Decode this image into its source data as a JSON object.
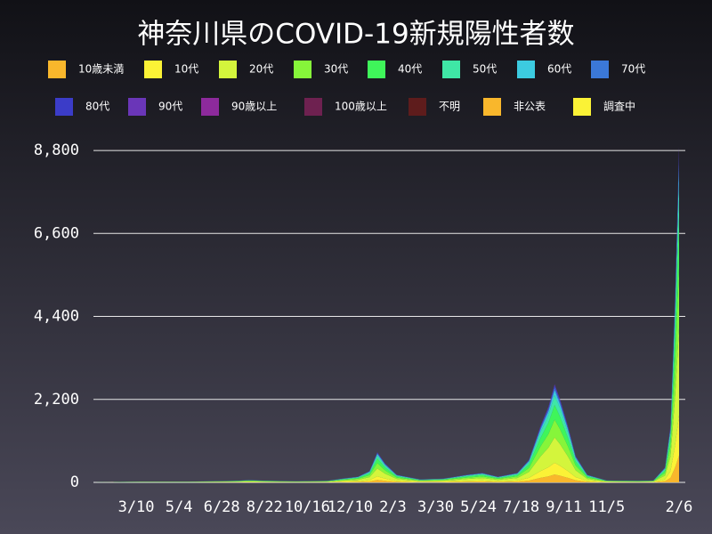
{
  "chart_data": {
    "type": "stacked-area",
    "title": "神奈川県のCOVID-19新規陽性者数",
    "x": [
      0,
      60,
      120,
      180,
      200,
      230,
      260,
      300,
      320,
      340,
      355,
      365,
      375,
      390,
      420,
      450,
      480,
      500,
      520,
      545,
      560,
      575,
      585,
      593,
      600,
      610,
      620,
      635,
      660,
      700,
      720,
      735,
      742,
      748,
      753
    ],
    "xlim": [
      0,
      761
    ],
    "xticks": [
      {
        "value": 55,
        "label": "3/10"
      },
      {
        "value": 110,
        "label": "5/4"
      },
      {
        "value": 165,
        "label": "6/28"
      },
      {
        "value": 220,
        "label": "8/22"
      },
      {
        "value": 275,
        "label": "10/16"
      },
      {
        "value": 330,
        "label": "12/10"
      },
      {
        "value": 385,
        "label": "2/3"
      },
      {
        "value": 440,
        "label": "3/30"
      },
      {
        "value": 495,
        "label": "5/24"
      },
      {
        "value": 550,
        "label": "7/18"
      },
      {
        "value": 605,
        "label": "9/11"
      },
      {
        "value": 660,
        "label": "11/5"
      },
      {
        "value": 753,
        "label": "2/6"
      }
    ],
    "ylim": [
      0,
      9250
    ],
    "yticks": [
      0,
      {
        "value": 2200,
        "label": "2,200"
      },
      {
        "value": 4400,
        "label": "4,400"
      },
      {
        "value": 6600,
        "label": "6,600"
      },
      {
        "value": 8800,
        "label": "8,800"
      }
    ],
    "grid": true,
    "series": [
      {
        "name": "10歳未満",
        "color": "#f9b72c",
        "values": [
          0,
          2,
          2,
          3,
          5,
          3,
          2,
          3,
          8,
          12,
          24,
          64,
          40,
          16,
          6,
          8,
          16,
          20,
          12,
          20,
          48,
          120,
          160,
          208,
          176,
          120,
          56,
          16,
          4,
          3,
          4,
          32,
          120,
          400,
          712
        ]
      },
      {
        "name": "10代",
        "color": "#fbf236",
        "values": [
          0,
          2,
          2,
          5,
          7,
          5,
          4,
          5,
          12,
          18,
          36,
          96,
          60,
          24,
          10,
          12,
          24,
          30,
          18,
          30,
          72,
          180,
          240,
          312,
          264,
          180,
          84,
          24,
          6,
          5,
          6,
          48,
          180,
          600,
          1068
        ]
      },
      {
        "name": "20代",
        "color": "#d4f53c",
        "values": [
          0,
          5,
          5,
          10,
          16,
          10,
          8,
          10,
          26,
          39,
          78,
          208,
          130,
          52,
          21,
          26,
          52,
          65,
          39,
          65,
          156,
          390,
          520,
          676,
          572,
          390,
          182,
          52,
          13,
          10,
          13,
          104,
          390,
          1300,
          2314
        ]
      },
      {
        "name": "30代",
        "color": "#86f53a",
        "values": [
          0,
          4,
          4,
          7,
          11,
          7,
          5,
          7,
          18,
          27,
          54,
          144,
          90,
          36,
          14,
          18,
          36,
          45,
          27,
          45,
          108,
          270,
          360,
          468,
          396,
          270,
          126,
          36,
          9,
          7,
          9,
          72,
          270,
          900,
          1602
        ]
      },
      {
        "name": "40代",
        "color": "#3ff55a",
        "values": [
          0,
          3,
          3,
          6,
          9,
          6,
          4,
          6,
          15,
          22,
          45,
          120,
          75,
          30,
          12,
          15,
          30,
          38,
          22,
          38,
          90,
          225,
          300,
          390,
          330,
          225,
          105,
          30,
          8,
          6,
          8,
          60,
          225,
          750,
          1335
        ]
      },
      {
        "name": "50代",
        "color": "#3fe7a6",
        "values": [
          0,
          2,
          2,
          4,
          6,
          4,
          3,
          4,
          10,
          15,
          30,
          80,
          50,
          20,
          8,
          10,
          20,
          25,
          15,
          25,
          60,
          150,
          200,
          260,
          220,
          150,
          70,
          20,
          5,
          4,
          5,
          40,
          150,
          500,
          890
        ]
      },
      {
        "name": "60代",
        "color": "#3ccbe0",
        "values": [
          0,
          1,
          1,
          2,
          3,
          2,
          2,
          2,
          5,
          8,
          15,
          40,
          25,
          10,
          4,
          5,
          10,
          12,
          8,
          12,
          30,
          75,
          100,
          130,
          110,
          75,
          35,
          10,
          2,
          2,
          2,
          20,
          75,
          250,
          445
        ]
      },
      {
        "name": "70代",
        "color": "#3b78d8",
        "values": [
          0,
          1,
          1,
          1,
          2,
          1,
          1,
          1,
          3,
          4,
          9,
          24,
          15,
          6,
          2,
          3,
          6,
          8,
          4,
          8,
          18,
          45,
          60,
          78,
          66,
          45,
          21,
          6,
          2,
          1,
          2,
          12,
          45,
          150,
          267
        ]
      },
      {
        "name": "80代",
        "color": "#3b3cc8",
        "values": [
          0,
          0,
          0,
          1,
          1,
          1,
          1,
          1,
          2,
          3,
          6,
          16,
          10,
          4,
          2,
          2,
          4,
          5,
          3,
          5,
          12,
          30,
          40,
          52,
          44,
          30,
          14,
          4,
          1,
          1,
          1,
          8,
          30,
          100,
          178
        ]
      },
      {
        "name": "90代",
        "color": "#6a36b8",
        "values": [
          0,
          0,
          0,
          0,
          0,
          0,
          0,
          0,
          1,
          2,
          3,
          8,
          5,
          2,
          1,
          1,
          2,
          2,
          2,
          2,
          6,
          15,
          20,
          26,
          22,
          15,
          7,
          2,
          1,
          0,
          0,
          4,
          15,
          50,
          89
        ]
      },
      {
        "name": "90歳以上",
        "color": "#8d2a9c",
        "values": [
          0,
          0,
          0,
          0,
          0,
          0,
          0,
          0,
          0,
          0,
          0,
          0,
          0,
          0,
          0,
          0,
          0,
          0,
          0,
          0,
          0,
          0,
          0,
          0,
          0,
          0,
          0,
          0,
          0,
          0,
          0,
          0,
          0,
          0,
          0
        ]
      },
      {
        "name": "100歳以上",
        "color": "#6e2150",
        "values": [
          0,
          0,
          0,
          0,
          0,
          0,
          0,
          0,
          0,
          0,
          0,
          0,
          0,
          0,
          0,
          0,
          0,
          0,
          0,
          0,
          0,
          0,
          0,
          0,
          0,
          0,
          0,
          0,
          0,
          0,
          0,
          0,
          0,
          0,
          0
        ]
      },
      {
        "name": "不明",
        "color": "#5e1c1c",
        "values": [
          0,
          0,
          0,
          0,
          0,
          0,
          0,
          0,
          0,
          0,
          0,
          0,
          0,
          0,
          0,
          0,
          0,
          0,
          0,
          0,
          0,
          0,
          0,
          0,
          0,
          0,
          0,
          0,
          0,
          0,
          0,
          0,
          0,
          0,
          0
        ]
      },
      {
        "name": "非公表",
        "color": "#f9b72c",
        "values": [
          0,
          0,
          0,
          0,
          0,
          0,
          0,
          0,
          0,
          0,
          0,
          0,
          0,
          0,
          0,
          0,
          0,
          0,
          0,
          0,
          0,
          0,
          0,
          0,
          0,
          0,
          0,
          0,
          0,
          0,
          0,
          0,
          0,
          0,
          0
        ]
      },
      {
        "name": "調査中",
        "color": "#fbf236",
        "values": [
          0,
          0,
          0,
          0,
          0,
          0,
          0,
          0,
          0,
          0,
          0,
          0,
          0,
          0,
          0,
          0,
          0,
          0,
          0,
          0,
          0,
          0,
          0,
          0,
          0,
          0,
          0,
          0,
          0,
          0,
          0,
          0,
          0,
          0,
          0
        ]
      }
    ]
  }
}
